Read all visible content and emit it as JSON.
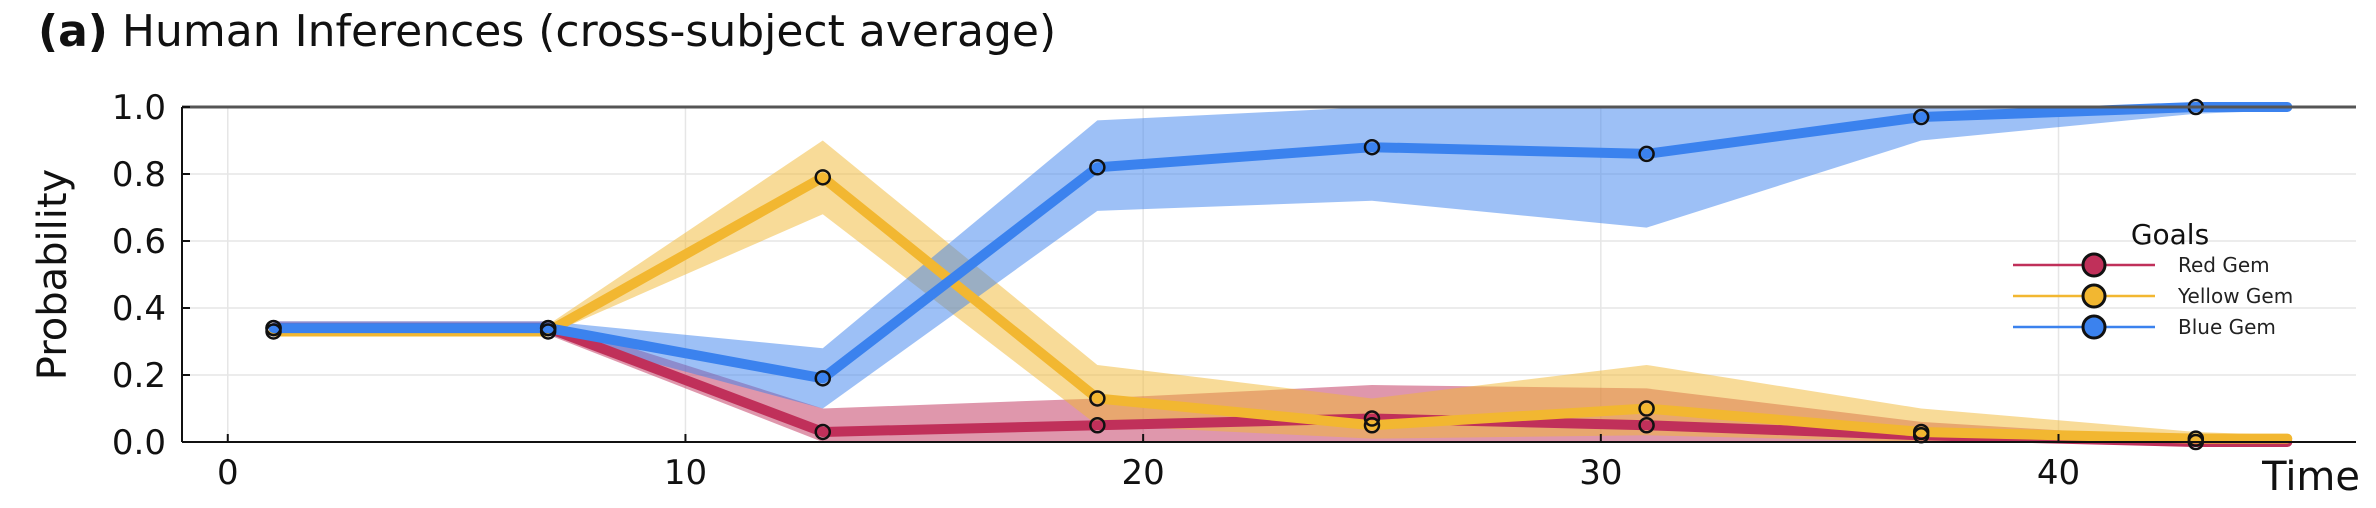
{
  "title": {
    "tag": "(a)",
    "text": "Human Inferences (cross-subject average)"
  },
  "chart_data": {
    "type": "line",
    "title": "(a) Human Inferences (cross-subject average)",
    "xlabel": "Time",
    "ylabel": "Probability",
    "xlim": [
      -1,
      46.5
    ],
    "ylim": [
      0,
      1
    ],
    "x_ticks": [
      0,
      10,
      20,
      30,
      40
    ],
    "y_ticks": [
      0.0,
      0.2,
      0.4,
      0.6,
      0.8,
      1.0
    ],
    "x_tick_labels": [
      "0",
      "10",
      "20",
      "30",
      "40"
    ],
    "y_tick_labels": [
      "0.0",
      "0.2",
      "0.4",
      "0.6",
      "0.8",
      "1.0"
    ],
    "grid": true,
    "legend": {
      "title": "Goals",
      "position": "right"
    },
    "x": [
      1,
      7,
      13,
      19,
      25,
      31,
      37,
      43,
      45
    ],
    "series": [
      {
        "name": "Red Gem",
        "color": "#c0305a",
        "values": [
          0.34,
          0.34,
          0.03,
          0.05,
          0.07,
          0.05,
          0.02,
          0.0,
          0.0
        ],
        "lower": [
          0.32,
          0.32,
          0.0,
          0.0,
          0.0,
          0.0,
          0.0,
          0.0,
          0.0
        ],
        "upper": [
          0.36,
          0.36,
          0.1,
          0.13,
          0.17,
          0.16,
          0.06,
          0.01,
          0.01
        ]
      },
      {
        "name": "Yellow Gem",
        "color": "#f2b731",
        "values": [
          0.33,
          0.33,
          0.79,
          0.13,
          0.05,
          0.1,
          0.03,
          0.01,
          0.01
        ],
        "lower": [
          0.32,
          0.32,
          0.68,
          0.05,
          0.01,
          0.02,
          0.0,
          0.0,
          0.0
        ],
        "upper": [
          0.35,
          0.35,
          0.9,
          0.23,
          0.13,
          0.23,
          0.1,
          0.03,
          0.02
        ]
      },
      {
        "name": "Blue Gem",
        "color": "#3b82ee",
        "values": [
          0.34,
          0.34,
          0.19,
          0.82,
          0.88,
          0.86,
          0.97,
          1.0,
          1.0
        ],
        "lower": [
          0.32,
          0.32,
          0.1,
          0.69,
          0.72,
          0.64,
          0.9,
          0.98,
          0.99
        ],
        "upper": [
          0.36,
          0.36,
          0.28,
          0.96,
          1.0,
          1.0,
          1.0,
          1.0,
          1.0
        ]
      }
    ],
    "markers_shown_at": [
      1,
      7,
      13,
      19,
      25,
      31,
      37,
      43,
      45
    ]
  }
}
